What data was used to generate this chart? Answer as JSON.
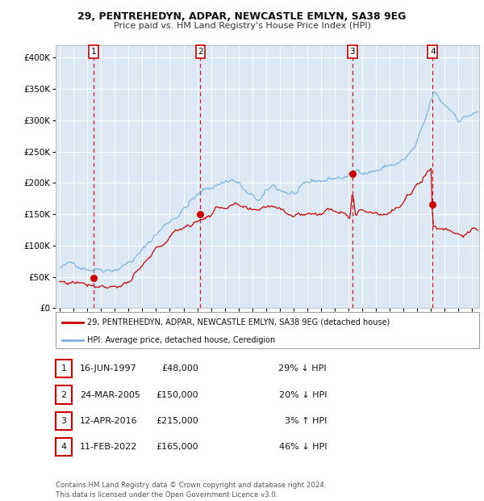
{
  "title1": "29, PENTREHEDYN, ADPAR, NEWCASTLE EMLYN, SA38 9EG",
  "title2": "Price paid vs. HM Land Registry's House Price Index (HPI)",
  "bg_color": "#dce9f5",
  "transactions": [
    {
      "num": 1,
      "date_str": "16-JUN-1997",
      "date_x": 1997.46,
      "price": 48000,
      "pct": "29%",
      "dir": "↓"
    },
    {
      "num": 2,
      "date_str": "24-MAR-2005",
      "date_x": 2005.23,
      "price": 150000,
      "pct": "20%",
      "dir": "↓"
    },
    {
      "num": 3,
      "date_str": "12-APR-2016",
      "date_x": 2016.28,
      "price": 215000,
      "pct": "3%",
      "dir": "↑"
    },
    {
      "num": 4,
      "date_str": "11-FEB-2022",
      "date_x": 2022.12,
      "price": 165000,
      "pct": "46%",
      "dir": "↓"
    }
  ],
  "hpi_color": "#7fb3e0",
  "price_color": "#cc0000",
  "dashed_color": "#cc0000",
  "footnote": "Contains HM Land Registry data © Crown copyright and database right 2024.\nThis data is licensed under the Open Government Licence v3.0.",
  "legend1": "29, PENTREHEDYN, ADPAR, NEWCASTLE EMLYN, SA38 9EG (detached house)",
  "legend2": "HPI: Average price, detached house, Ceredigion",
  "ylim": [
    0,
    420000
  ],
  "yticks": [
    0,
    50000,
    100000,
    150000,
    200000,
    250000,
    300000,
    350000,
    400000
  ],
  "xlim_start": 1994.7,
  "xlim_end": 2025.5
}
